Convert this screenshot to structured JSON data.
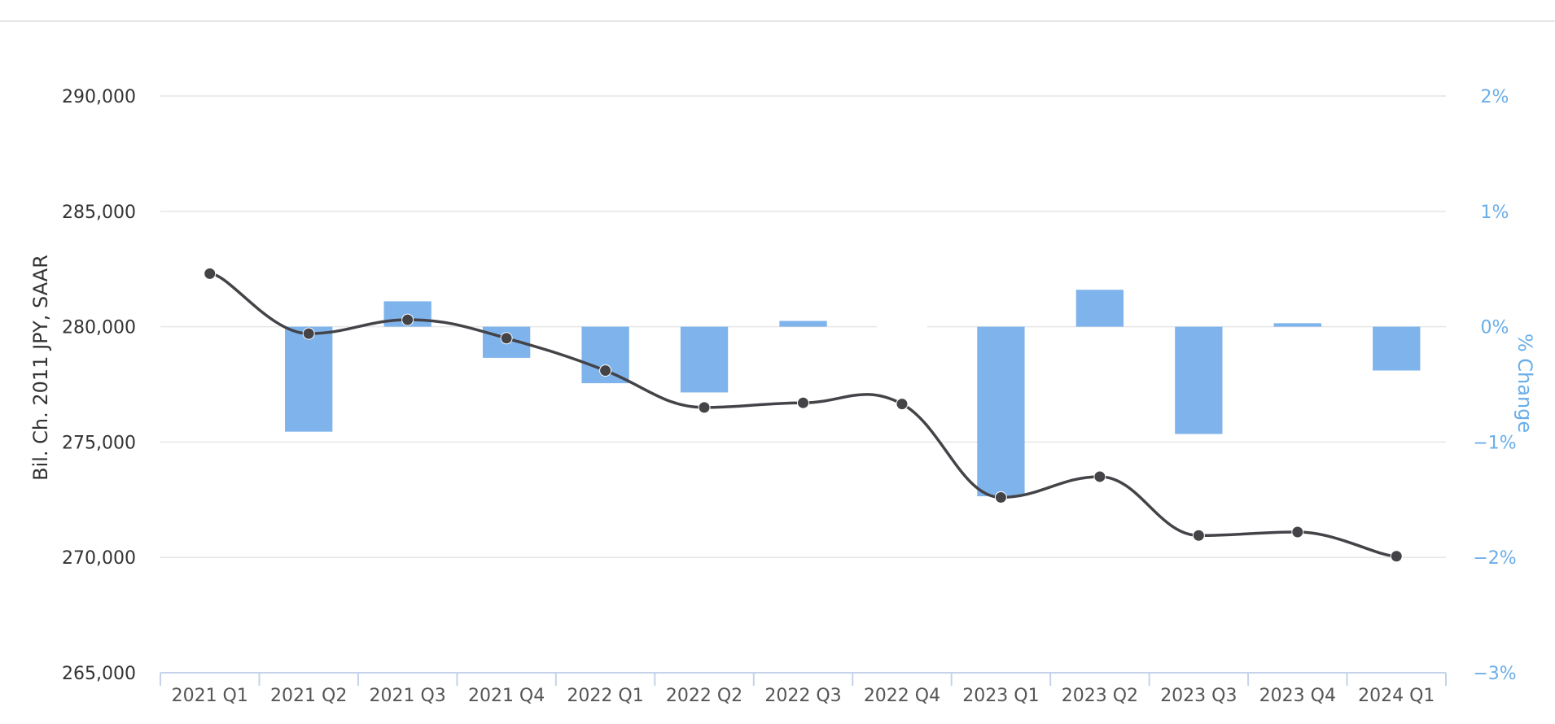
{
  "chart_data": {
    "type": "bar+line",
    "categories": [
      "2021 Q1",
      "2021 Q2",
      "2021 Q3",
      "2021 Q4",
      "2022 Q1",
      "2022 Q2",
      "2022 Q3",
      "2022 Q4",
      "2023 Q1",
      "2023 Q2",
      "2023 Q3",
      "2023 Q4",
      "2024 Q1"
    ],
    "line_series": {
      "axis": "left",
      "color": "#434348",
      "values": [
        282300,
        279700,
        280300,
        279500,
        278100,
        276500,
        276700,
        276650,
        272600,
        273500,
        270950,
        271100,
        270050
      ]
    },
    "bar_series": {
      "axis": "right",
      "color": "#7eb3eb",
      "values": [
        null,
        -0.91,
        0.22,
        -0.27,
        -0.49,
        -0.57,
        0.05,
        0.0,
        -1.47,
        0.32,
        -0.93,
        0.03,
        -0.38
      ]
    },
    "y_left": {
      "label": "Bil. Ch. 2011 JPY, SAAR",
      "min": 265000,
      "max": 290000,
      "ticks": [
        265000,
        270000,
        275000,
        280000,
        285000,
        290000
      ],
      "tick_labels": [
        "265,000",
        "270,000",
        "275,000",
        "280,000",
        "285,000",
        "290,000"
      ]
    },
    "y_right": {
      "label": "% Change",
      "min": -3,
      "max": 2,
      "ticks": [
        -3,
        -2,
        -1,
        0,
        1,
        2
      ],
      "tick_labels": [
        "−3%",
        "−2%",
        "−1%",
        "0%",
        "1%",
        "2%"
      ]
    },
    "grid": true,
    "legend": "none"
  }
}
